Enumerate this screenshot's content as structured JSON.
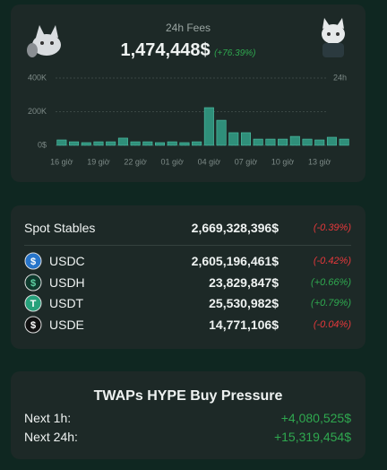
{
  "fees_card": {
    "title": "24h Fees",
    "total": "1,474,448$",
    "change": "(+76.39%)",
    "change_color": "#2fa84f",
    "chart": {
      "type": "bar",
      "range_label": "24h",
      "categories": [
        "16 giờ",
        null,
        null,
        "19 giờ",
        null,
        null,
        "22 giờ",
        null,
        null,
        "01 giờ",
        null,
        null,
        "04 giờ",
        null,
        null,
        "07 giờ",
        null,
        null,
        "10 giờ",
        null,
        null,
        "13 giờ",
        null,
        null
      ],
      "values": [
        32000,
        21000,
        16000,
        21000,
        21000,
        43000,
        21000,
        21000,
        16000,
        21000,
        16000,
        21000,
        224000,
        149000,
        75000,
        75000,
        37000,
        37000,
        37000,
        53000,
        37000,
        32000,
        48000,
        37000
      ],
      "color": "#2f8f7a",
      "ylim": [
        0,
        400000
      ],
      "yticks": [
        {
          "value": 0,
          "label": "0$"
        },
        {
          "value": 200000,
          "label": "200K"
        },
        {
          "value": 400000,
          "label": "400K"
        }
      ]
    }
  },
  "stables_card": {
    "header": {
      "label": "Spot Stables",
      "amount": "2,669,328,396$",
      "change": "(-0.39%)",
      "change_color": "#e5383b"
    },
    "rows": [
      {
        "name": "USDC",
        "amount": "2,605,196,461$",
        "change": "(-0.42%)",
        "change_color": "#e5383b"
      },
      {
        "name": "USDH",
        "amount": "23,829,847$",
        "change": "(+0.66%)",
        "change_color": "#2fa84f"
      },
      {
        "name": "USDT",
        "amount": "25,530,982$",
        "change": "(+0.79%)",
        "change_color": "#2fa84f"
      },
      {
        "name": "USDE",
        "amount": "14,771,106$",
        "change": "(-0.04%)",
        "change_color": "#e5383b"
      }
    ]
  },
  "twap_card": {
    "title": "TWAPs HYPE Buy Pressure",
    "color": "#2fa84f",
    "rows": [
      {
        "label": "Next 1h:",
        "value": "+4,080,525$"
      },
      {
        "label": "Next 24h:",
        "value": "+15,319,454$"
      }
    ]
  }
}
